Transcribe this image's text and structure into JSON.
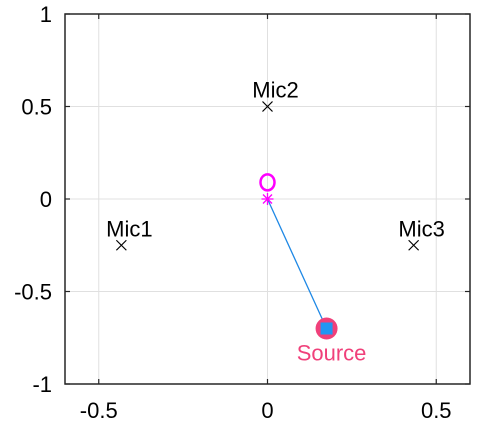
{
  "chart_data": {
    "type": "scatter",
    "xlim": [
      -0.6,
      0.6
    ],
    "ylim": [
      -1,
      1
    ],
    "xticks": [
      -0.5,
      0,
      0.5
    ],
    "xtick_labels": [
      "-0.5",
      "0",
      "0.5"
    ],
    "yticks": [
      1,
      0.5,
      0,
      -0.5,
      -1
    ],
    "ytick_labels": [
      "1",
      "0.5",
      "0",
      "-0.5",
      "-1"
    ],
    "grid": true,
    "microphones": [
      {
        "label": "Mic1",
        "x": -0.433,
        "y": -0.25
      },
      {
        "label": "Mic2",
        "x": 0,
        "y": 0.5
      },
      {
        "label": "Mic3",
        "x": 0.433,
        "y": -0.25
      }
    ],
    "center": {
      "x": 0,
      "y": 0
    },
    "center_circle": {
      "x": 0,
      "y": 0.09
    },
    "source": {
      "label": "Source",
      "x": 0.175,
      "y": -0.7
    },
    "segment": {
      "from": [
        0,
        0
      ],
      "to": [
        0.175,
        -0.7
      ]
    },
    "colors": {
      "mic_marker": "#000000",
      "center_marker": "#ff00ff",
      "segment": "#1e88e5",
      "source_circle": "#f0407a",
      "source_square": "#2196f3",
      "source_label": "#f0407a",
      "grid": "#e0e0e0",
      "axes": "#262626"
    }
  }
}
